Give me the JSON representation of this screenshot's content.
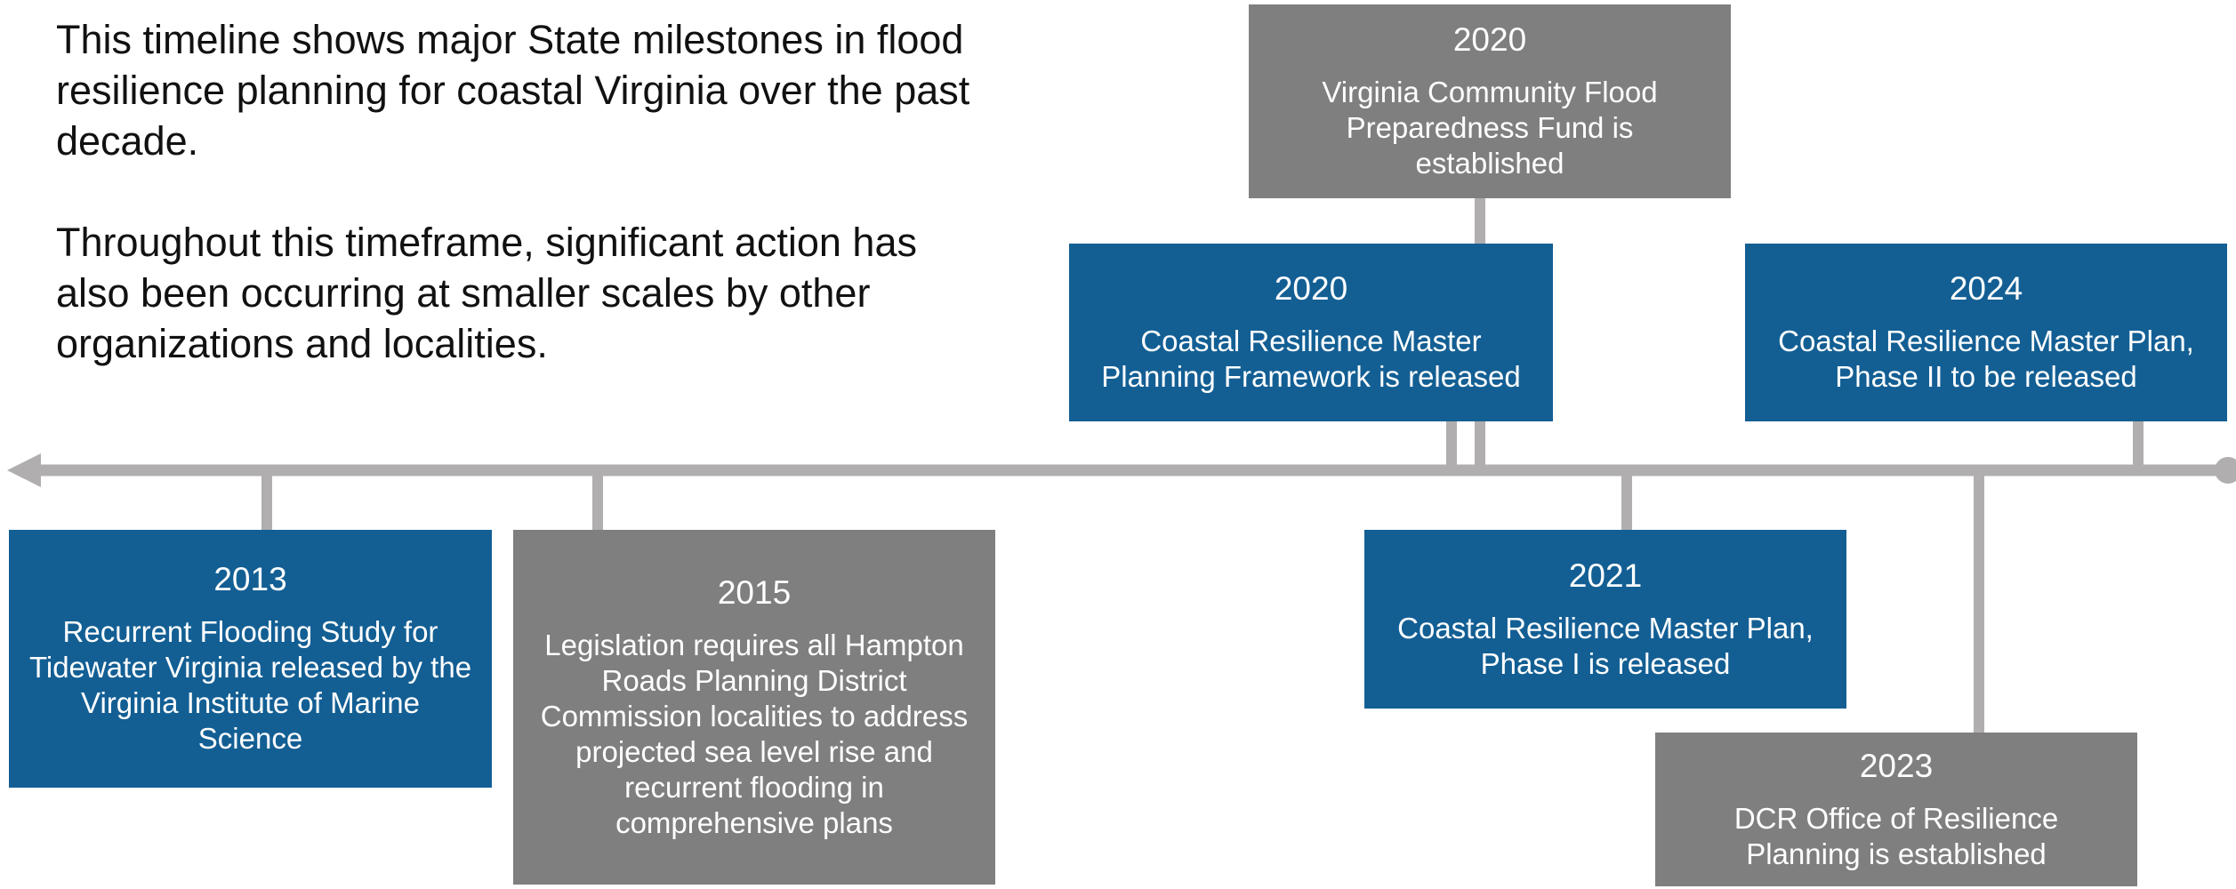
{
  "intro": [
    "This timeline shows major State milestones in flood resilience planning for coastal Virginia over the past decade.",
    "Throughout this timeframe, significant action has also been occurring at smaller scales by other organizations and localities."
  ],
  "events": [
    {
      "year": "2013",
      "text": "Recurrent Flooding Study for Tidewater Virginia released by the Virginia Institute of Marine Science"
    },
    {
      "year": "2015",
      "text": "Legislation requires all Hampton Roads Planning District Commission localities to address projected sea level rise and recurrent flooding in comprehensive plans"
    },
    {
      "year": "2020",
      "text": "Virginia Community Flood Preparedness Fund is established"
    },
    {
      "year": "2020",
      "text": "Coastal Resilience Master Planning Framework is released"
    },
    {
      "year": "2021",
      "text": "Coastal Resilience Master Plan, Phase I is released"
    },
    {
      "year": "2023",
      "text": "DCR Office of Resilience Planning is established"
    },
    {
      "year": "2024",
      "text": "Coastal Resilience Master Plan, Phase II to be released"
    }
  ]
}
